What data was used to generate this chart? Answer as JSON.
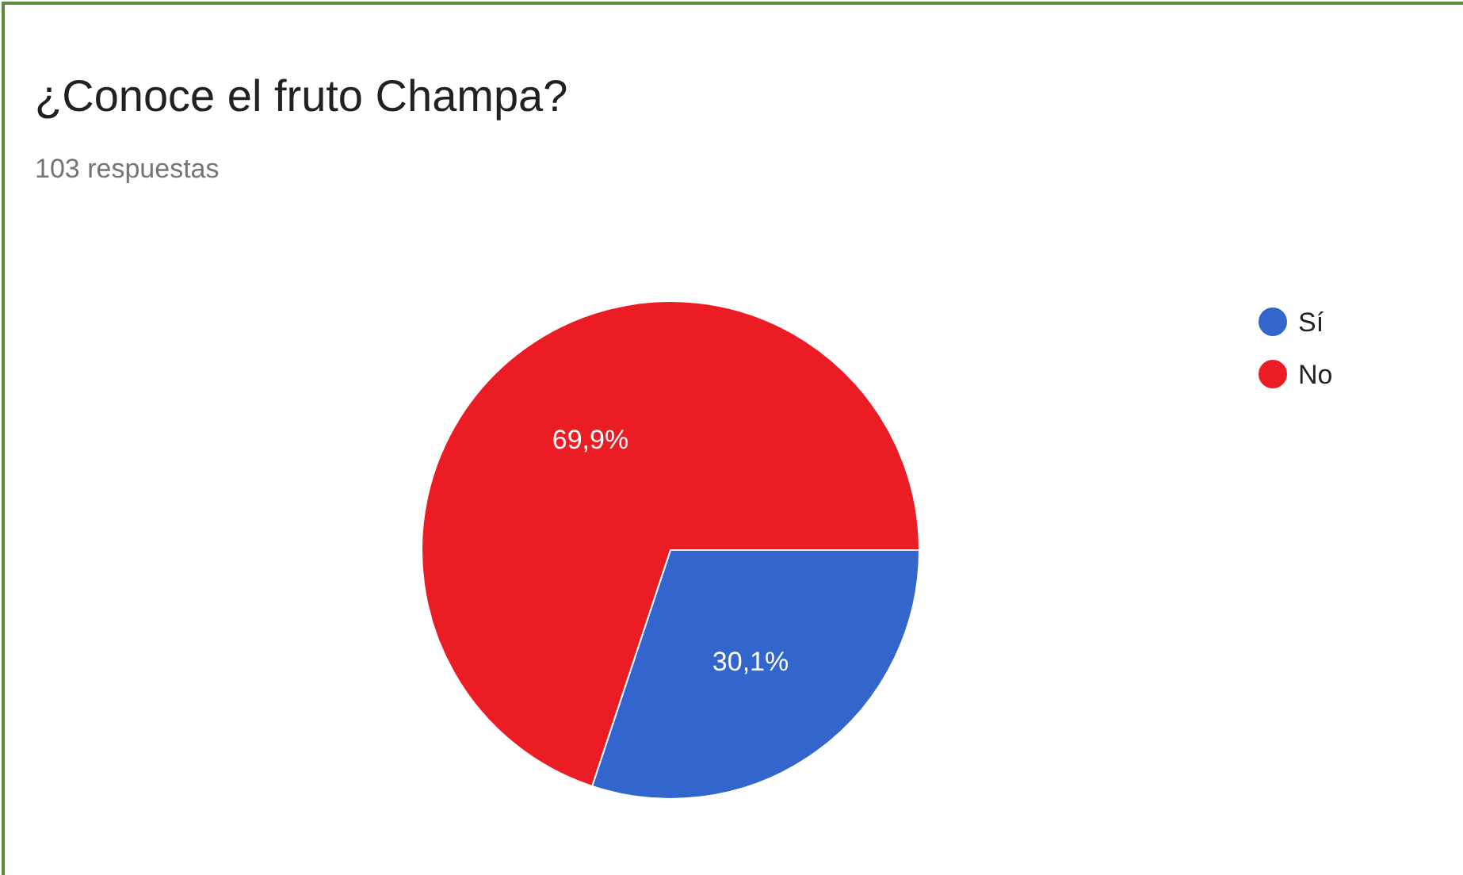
{
  "chart_data": {
    "type": "pie",
    "title": "¿Conoce el fruto Champa?",
    "subtitle": "103 respuestas",
    "categories": [
      "Sí",
      "No"
    ],
    "values": [
      30.1,
      69.9
    ],
    "colors": [
      "#3366cc",
      "#ec1c24"
    ],
    "value_labels": [
      "30,1%",
      "69,9%"
    ],
    "legend": "right"
  }
}
